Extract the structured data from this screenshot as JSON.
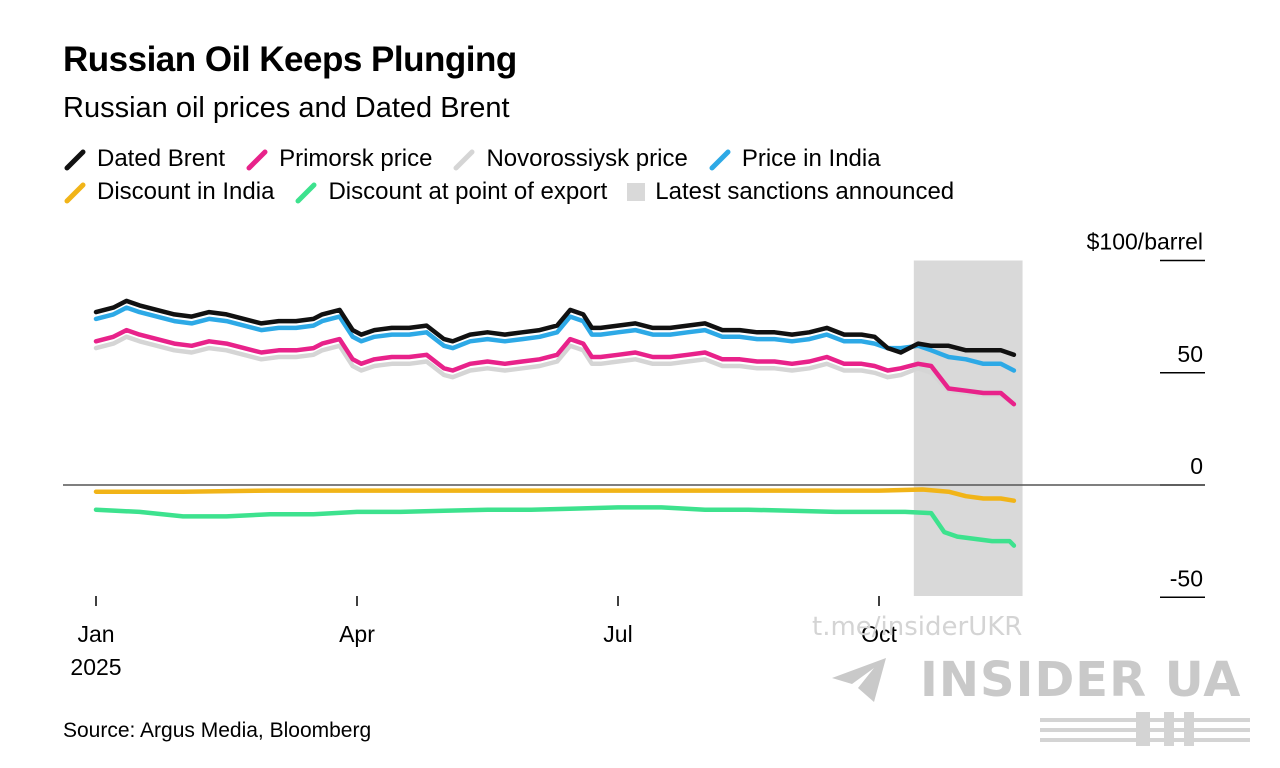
{
  "title": "Russian Oil Keeps Plunging",
  "subtitle": "Russian oil prices and Dated Brent",
  "legend": [
    {
      "label": "Dated Brent",
      "color": "#111111",
      "kind": "line"
    },
    {
      "label": "Primorsk price",
      "color": "#e8228a",
      "kind": "line"
    },
    {
      "label": "Novorossiysk price",
      "color": "#d5d5d5",
      "kind": "line"
    },
    {
      "label": "Price in India",
      "color": "#2da9e6",
      "kind": "line"
    },
    {
      "label": "Discount in India",
      "color": "#f1b418",
      "kind": "line"
    },
    {
      "label": "Discount at point of export",
      "color": "#3de28e",
      "kind": "line"
    },
    {
      "label": "Latest sanctions announced",
      "color": "#d9d9d9",
      "kind": "box"
    }
  ],
  "source": "Source: Argus Media, Bloomberg",
  "watermark": {
    "handle": "t.me/insiderUKR",
    "brand": "INSIDER UA"
  },
  "chart_data": {
    "type": "line",
    "y_unit_label": "$100/barrel",
    "ylim": [
      -50,
      100
    ],
    "y_ticks": [
      {
        "value": 100,
        "label": "$100/barrel"
      },
      {
        "value": 50,
        "label": "50"
      },
      {
        "value": 0,
        "label": "0"
      },
      {
        "value": -50,
        "label": "-50"
      }
    ],
    "x_ticks": [
      {
        "value": 1.0,
        "label": "Jan",
        "sublabel": "2025"
      },
      {
        "value": 4.0,
        "label": "Apr",
        "sublabel": ""
      },
      {
        "value": 7.0,
        "label": "Jul",
        "sublabel": ""
      },
      {
        "value": 10.0,
        "label": "Oct",
        "sublabel": ""
      }
    ],
    "x_unit": "month of 2025 (1 = Jan 1)",
    "sanctions_period": {
      "start": 10.4,
      "end": 11.65
    },
    "series": [
      {
        "name": "Dated Brent",
        "color": "#111111",
        "x": [
          1.0,
          1.2,
          1.35,
          1.5,
          1.7,
          1.9,
          2.1,
          2.3,
          2.5,
          2.7,
          2.9,
          3.1,
          3.3,
          3.5,
          3.6,
          3.8,
          3.95,
          4.05,
          4.2,
          4.4,
          4.6,
          4.8,
          5.0,
          5.1,
          5.3,
          5.5,
          5.7,
          5.9,
          6.1,
          6.3,
          6.45,
          6.6,
          6.7,
          6.8,
          7.0,
          7.2,
          7.4,
          7.6,
          7.8,
          8.0,
          8.2,
          8.4,
          8.6,
          8.8,
          9.0,
          9.2,
          9.4,
          9.6,
          9.8,
          9.95,
          10.1,
          10.25,
          10.45,
          10.6,
          10.8,
          11.0,
          11.2,
          11.4,
          11.55
        ],
        "values": [
          77,
          79,
          82,
          80,
          78,
          76,
          75,
          77,
          76,
          74,
          72,
          73,
          73,
          74,
          76,
          78,
          69,
          67,
          69,
          70,
          70,
          71,
          65,
          64,
          67,
          68,
          67,
          68,
          69,
          71,
          78,
          76,
          70,
          70,
          71,
          72,
          70,
          70,
          71,
          72,
          69,
          69,
          68,
          68,
          67,
          68,
          70,
          67,
          67,
          66,
          61,
          59,
          63,
          62,
          62,
          60,
          60,
          60,
          58
        ]
      },
      {
        "name": "Price in India",
        "color": "#2da9e6",
        "x": [
          1.0,
          1.2,
          1.35,
          1.5,
          1.7,
          1.9,
          2.1,
          2.3,
          2.5,
          2.7,
          2.9,
          3.1,
          3.3,
          3.5,
          3.6,
          3.8,
          3.95,
          4.05,
          4.2,
          4.4,
          4.6,
          4.8,
          5.0,
          5.1,
          5.3,
          5.5,
          5.7,
          5.9,
          6.1,
          6.3,
          6.45,
          6.6,
          6.7,
          6.8,
          7.0,
          7.2,
          7.4,
          7.6,
          7.8,
          8.0,
          8.2,
          8.4,
          8.6,
          8.8,
          9.0,
          9.2,
          9.4,
          9.6,
          9.8,
          9.95,
          10.1,
          10.25,
          10.45,
          10.6,
          10.8,
          11.0,
          11.2,
          11.4,
          11.55
        ],
        "values": [
          74,
          76,
          79,
          77,
          75,
          73,
          72,
          74,
          73,
          71,
          69,
          70,
          70,
          71,
          73,
          75,
          66,
          64,
          66,
          67,
          67,
          68,
          62,
          61,
          64,
          65,
          64,
          65,
          66,
          68,
          75,
          73,
          67,
          67,
          68,
          69,
          67,
          67,
          68,
          69,
          66,
          66,
          65,
          65,
          64,
          65,
          67,
          64,
          64,
          63,
          61,
          61,
          62,
          60,
          57,
          56,
          54,
          54,
          51
        ]
      },
      {
        "name": "Novorossiysk price",
        "color": "#d5d5d5",
        "x": [
          1.0,
          1.2,
          1.35,
          1.5,
          1.7,
          1.9,
          2.1,
          2.3,
          2.5,
          2.7,
          2.9,
          3.1,
          3.3,
          3.5,
          3.6,
          3.8,
          3.95,
          4.05,
          4.2,
          4.4,
          4.6,
          4.8,
          5.0,
          5.1,
          5.3,
          5.5,
          5.7,
          5.9,
          6.1,
          6.3,
          6.45,
          6.6,
          6.7,
          6.8,
          7.0,
          7.2,
          7.4,
          7.6,
          7.8,
          8.0,
          8.2,
          8.4,
          8.6,
          8.8,
          9.0,
          9.2,
          9.4,
          9.6,
          9.8,
          9.95,
          10.1,
          10.25,
          10.45,
          10.6,
          10.8,
          11.0,
          11.2,
          11.4,
          11.55
        ],
        "values": [
          61,
          63,
          66,
          64,
          62,
          60,
          59,
          61,
          60,
          58,
          56,
          57,
          57,
          58,
          60,
          62,
          53,
          51,
          53,
          54,
          54,
          55,
          49,
          48,
          51,
          52,
          51,
          52,
          53,
          55,
          62,
          60,
          54,
          54,
          55,
          56,
          54,
          54,
          55,
          56,
          53,
          53,
          52,
          52,
          51,
          52,
          54,
          51,
          51,
          50,
          48,
          49,
          52,
          50,
          42,
          41,
          40,
          40,
          36
        ]
      },
      {
        "name": "Primorsk price",
        "color": "#e8228a",
        "x": [
          1.0,
          1.2,
          1.35,
          1.5,
          1.7,
          1.9,
          2.1,
          2.3,
          2.5,
          2.7,
          2.9,
          3.1,
          3.3,
          3.5,
          3.6,
          3.8,
          3.95,
          4.05,
          4.2,
          4.4,
          4.6,
          4.8,
          5.0,
          5.1,
          5.3,
          5.5,
          5.7,
          5.9,
          6.1,
          6.3,
          6.45,
          6.6,
          6.7,
          6.8,
          7.0,
          7.2,
          7.4,
          7.6,
          7.8,
          8.0,
          8.2,
          8.4,
          8.6,
          8.8,
          9.0,
          9.2,
          9.4,
          9.6,
          9.8,
          9.95,
          10.1,
          10.25,
          10.45,
          10.6,
          10.8,
          11.0,
          11.2,
          11.4,
          11.55
        ],
        "values": [
          64,
          66,
          69,
          67,
          65,
          63,
          62,
          64,
          63,
          61,
          59,
          60,
          60,
          61,
          63,
          65,
          56,
          54,
          56,
          57,
          57,
          58,
          52,
          51,
          54,
          55,
          54,
          55,
          56,
          58,
          65,
          63,
          57,
          57,
          58,
          59,
          57,
          57,
          58,
          59,
          56,
          56,
          55,
          55,
          54,
          55,
          57,
          54,
          54,
          53,
          51,
          52,
          54,
          53,
          43,
          42,
          41,
          41,
          36
        ]
      },
      {
        "name": "Discount in India",
        "color": "#f1b418",
        "x": [
          1.0,
          2.0,
          3.0,
          4.0,
          5.0,
          6.0,
          7.0,
          8.0,
          9.0,
          10.0,
          10.5,
          10.8,
          11.0,
          11.2,
          11.4,
          11.55
        ],
        "values": [
          -3,
          -3,
          -2.5,
          -2.5,
          -2.5,
          -2.5,
          -2.5,
          -2.5,
          -2.5,
          -2.5,
          -2,
          -3,
          -5,
          -6,
          -6,
          -7
        ]
      },
      {
        "name": "Discount at point of export",
        "color": "#3de28e",
        "x": [
          1.0,
          1.5,
          2.0,
          2.5,
          3.0,
          3.5,
          4.0,
          4.5,
          5.0,
          5.5,
          6.0,
          6.5,
          7.0,
          7.5,
          8.0,
          8.5,
          9.0,
          9.5,
          10.0,
          10.3,
          10.6,
          10.75,
          10.9,
          11.1,
          11.3,
          11.5,
          11.55
        ],
        "values": [
          -11,
          -12,
          -14,
          -14,
          -13,
          -13,
          -12,
          -12,
          -11.5,
          -11,
          -11,
          -10.5,
          -10,
          -10,
          -11,
          -11,
          -11.5,
          -12,
          -12,
          -12,
          -12.5,
          -21,
          -23,
          -24,
          -25,
          -25,
          -27
        ]
      }
    ]
  }
}
